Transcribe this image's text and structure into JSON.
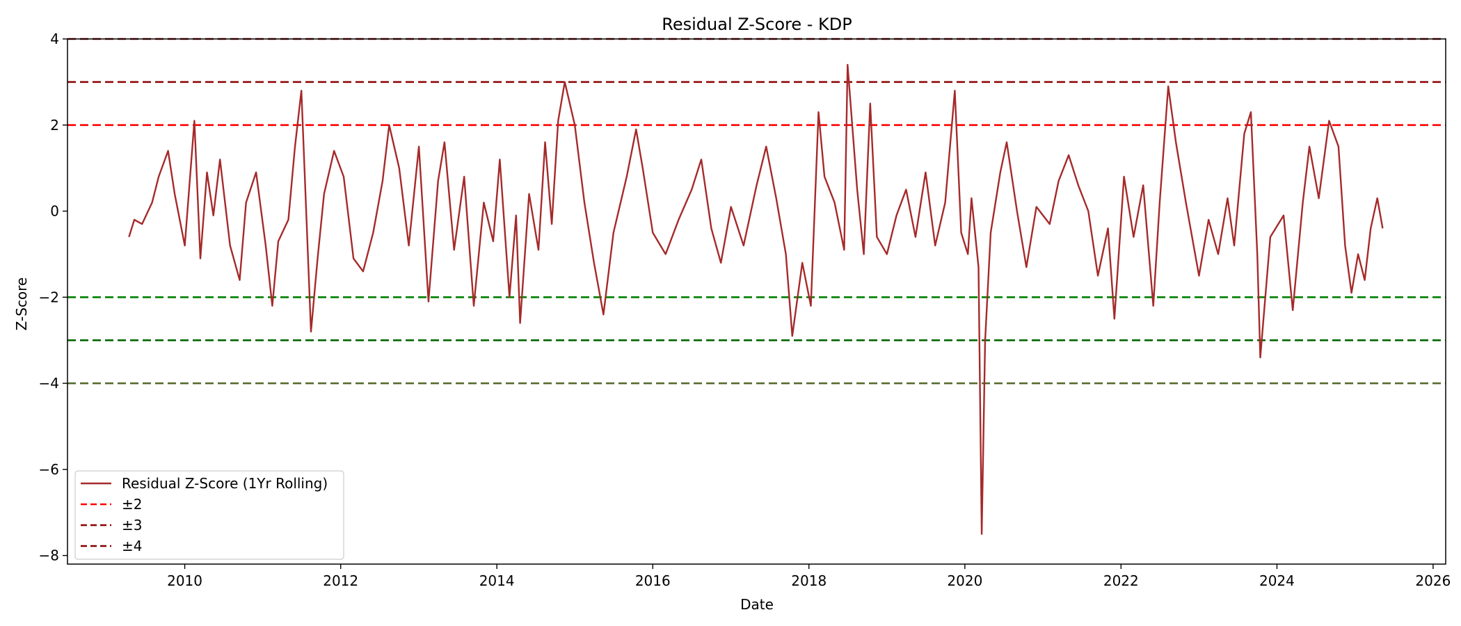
{
  "chart_data": {
    "type": "line",
    "title": "Residual Z-Score - KDP",
    "xlabel": "Date",
    "ylabel": "Z-Score",
    "x_range": [
      "2008-07-01",
      "2026-03-01"
    ],
    "ylim": [
      -8.2,
      4.0
    ],
    "x_ticks": [
      "2010",
      "2012",
      "2014",
      "2016",
      "2018",
      "2020",
      "2022",
      "2024",
      "2026"
    ],
    "y_ticks": [
      4,
      2,
      0,
      -2,
      -4,
      -6,
      -8
    ],
    "y_tick_labels": [
      "4",
      "2",
      "0",
      "−2",
      "−4",
      "−6",
      "−8"
    ],
    "grid": false,
    "legend_position": "lower-left",
    "series": [
      {
        "name": "Residual Z-Score (1Yr Rolling)",
        "color": "#a52a2a",
        "style": "solid",
        "points": [
          [
            "2009-04-15",
            -0.6
          ],
          [
            "2009-05-10",
            -0.2
          ],
          [
            "2009-06-15",
            -0.3
          ],
          [
            "2009-08-01",
            0.2
          ],
          [
            "2009-09-01",
            0.8
          ],
          [
            "2009-10-15",
            1.4
          ],
          [
            "2009-11-15",
            0.4
          ],
          [
            "2010-01-01",
            -0.8
          ],
          [
            "2010-02-15",
            2.1
          ],
          [
            "2010-03-15",
            -1.1
          ],
          [
            "2010-04-15",
            0.9
          ],
          [
            "2010-05-15",
            -0.1
          ],
          [
            "2010-06-15",
            1.2
          ],
          [
            "2010-08-01",
            -0.8
          ],
          [
            "2010-09-15",
            -1.6
          ],
          [
            "2010-10-15",
            0.2
          ],
          [
            "2010-12-01",
            0.9
          ],
          [
            "2011-01-15",
            -0.8
          ],
          [
            "2011-02-15",
            -2.2
          ],
          [
            "2011-03-15",
            -0.7
          ],
          [
            "2011-05-01",
            -0.2
          ],
          [
            "2011-06-01",
            1.5
          ],
          [
            "2011-07-01",
            2.8
          ],
          [
            "2011-08-15",
            -2.8
          ],
          [
            "2011-09-15",
            -1.1
          ],
          [
            "2011-10-15",
            0.4
          ],
          [
            "2011-12-01",
            1.4
          ],
          [
            "2012-01-15",
            0.8
          ],
          [
            "2012-03-01",
            -1.1
          ],
          [
            "2012-04-15",
            -1.4
          ],
          [
            "2012-06-01",
            -0.5
          ],
          [
            "2012-07-15",
            0.7
          ],
          [
            "2012-08-15",
            2.0
          ],
          [
            "2012-10-01",
            1.0
          ],
          [
            "2012-11-15",
            -0.8
          ],
          [
            "2013-01-01",
            1.5
          ],
          [
            "2013-02-15",
            -2.1
          ],
          [
            "2013-04-01",
            0.7
          ],
          [
            "2013-05-01",
            1.6
          ],
          [
            "2013-06-15",
            -0.9
          ],
          [
            "2013-08-01",
            0.8
          ],
          [
            "2013-09-15",
            -2.2
          ],
          [
            "2013-11-01",
            0.2
          ],
          [
            "2013-12-15",
            -0.7
          ],
          [
            "2014-01-15",
            1.2
          ],
          [
            "2014-03-01",
            -2.0
          ],
          [
            "2014-04-01",
            -0.1
          ],
          [
            "2014-04-20",
            -2.6
          ],
          [
            "2014-06-01",
            0.4
          ],
          [
            "2014-07-15",
            -0.9
          ],
          [
            "2014-08-15",
            1.6
          ],
          [
            "2014-09-15",
            -0.3
          ],
          [
            "2014-10-15",
            2.1
          ],
          [
            "2014-11-15",
            3.0
          ],
          [
            "2015-01-01",
            2.0
          ],
          [
            "2015-02-15",
            0.2
          ],
          [
            "2015-04-01",
            -1.2
          ],
          [
            "2015-05-15",
            -2.4
          ],
          [
            "2015-07-01",
            -0.5
          ],
          [
            "2015-09-01",
            0.8
          ],
          [
            "2015-10-15",
            1.9
          ],
          [
            "2015-11-15",
            1.0
          ],
          [
            "2016-01-01",
            -0.5
          ],
          [
            "2016-03-01",
            -1.0
          ],
          [
            "2016-05-01",
            -0.2
          ],
          [
            "2016-07-01",
            0.5
          ],
          [
            "2016-08-15",
            1.2
          ],
          [
            "2016-10-01",
            -0.4
          ],
          [
            "2016-11-15",
            -1.2
          ],
          [
            "2017-01-01",
            0.1
          ],
          [
            "2017-03-01",
            -0.8
          ],
          [
            "2017-05-01",
            0.6
          ],
          [
            "2017-06-15",
            1.5
          ],
          [
            "2017-08-01",
            0.3
          ],
          [
            "2017-09-15",
            -1.0
          ],
          [
            "2017-10-15",
            -2.9
          ],
          [
            "2017-12-01",
            -1.2
          ],
          [
            "2018-01-10",
            -2.2
          ],
          [
            "2018-02-15",
            2.3
          ],
          [
            "2018-03-15",
            0.8
          ],
          [
            "2018-05-01",
            0.2
          ],
          [
            "2018-06-15",
            -0.9
          ],
          [
            "2018-07-01",
            3.4
          ],
          [
            "2018-08-15",
            0.5
          ],
          [
            "2018-09-15",
            -1.0
          ],
          [
            "2018-10-15",
            2.5
          ],
          [
            "2018-11-15",
            -0.6
          ],
          [
            "2019-01-01",
            -1.0
          ],
          [
            "2019-02-15",
            -0.1
          ],
          [
            "2019-04-01",
            0.5
          ],
          [
            "2019-05-15",
            -0.6
          ],
          [
            "2019-07-01",
            0.9
          ],
          [
            "2019-08-15",
            -0.8
          ],
          [
            "2019-10-01",
            0.2
          ],
          [
            "2019-11-15",
            2.8
          ],
          [
            "2019-12-15",
            -0.5
          ],
          [
            "2020-01-15",
            -1.0
          ],
          [
            "2020-02-01",
            0.3
          ],
          [
            "2020-03-05",
            -1.3
          ],
          [
            "2020-03-20",
            -7.5
          ],
          [
            "2020-04-05",
            -3.0
          ],
          [
            "2020-05-01",
            -0.5
          ],
          [
            "2020-06-15",
            0.9
          ],
          [
            "2020-07-15",
            1.6
          ],
          [
            "2020-09-01",
            0.0
          ],
          [
            "2020-10-15",
            -1.3
          ],
          [
            "2020-12-01",
            0.1
          ],
          [
            "2021-02-01",
            -0.3
          ],
          [
            "2021-03-15",
            0.7
          ],
          [
            "2021-05-01",
            1.3
          ],
          [
            "2021-06-15",
            0.6
          ],
          [
            "2021-08-01",
            0.0
          ],
          [
            "2021-09-15",
            -1.5
          ],
          [
            "2021-11-01",
            -0.4
          ],
          [
            "2021-12-01",
            -2.5
          ],
          [
            "2022-01-15",
            0.8
          ],
          [
            "2022-03-01",
            -0.6
          ],
          [
            "2022-04-15",
            0.6
          ],
          [
            "2022-06-01",
            -2.2
          ],
          [
            "2022-07-01",
            0.2
          ],
          [
            "2022-08-10",
            2.9
          ],
          [
            "2022-09-15",
            1.6
          ],
          [
            "2022-11-01",
            0.2
          ],
          [
            "2023-01-01",
            -1.5
          ],
          [
            "2023-02-15",
            -0.2
          ],
          [
            "2023-04-01",
            -1.0
          ],
          [
            "2023-05-15",
            0.3
          ],
          [
            "2023-06-15",
            -0.8
          ],
          [
            "2023-08-01",
            1.8
          ],
          [
            "2023-09-01",
            2.3
          ],
          [
            "2023-10-01",
            -1.0
          ],
          [
            "2023-10-15",
            -3.4
          ],
          [
            "2023-12-01",
            -0.6
          ],
          [
            "2024-02-01",
            -0.1
          ],
          [
            "2024-03-15",
            -2.3
          ],
          [
            "2024-05-01",
            0.2
          ],
          [
            "2024-06-01",
            1.5
          ],
          [
            "2024-07-15",
            0.3
          ],
          [
            "2024-09-01",
            2.1
          ],
          [
            "2024-10-15",
            1.5
          ],
          [
            "2024-11-15",
            -0.8
          ],
          [
            "2024-12-15",
            -1.9
          ],
          [
            "2025-01-15",
            -1.0
          ],
          [
            "2025-02-15",
            -1.6
          ],
          [
            "2025-03-15",
            -0.4
          ],
          [
            "2025-04-15",
            0.3
          ],
          [
            "2025-05-10",
            -0.4
          ]
        ]
      }
    ],
    "reference_lines": [
      {
        "y": 4,
        "color": "#800000",
        "style": "dashed"
      },
      {
        "y": 3,
        "color": "#8b0000",
        "style": "dashed"
      },
      {
        "y": 2,
        "color": "#ff0000",
        "style": "dashed"
      },
      {
        "y": -2,
        "color": "#008000",
        "style": "dashed"
      },
      {
        "y": -3,
        "color": "#006400",
        "style": "dashed"
      },
      {
        "y": -4,
        "color": "#556b2f",
        "style": "dashed"
      }
    ],
    "legend": [
      {
        "label": "Residual Z-Score (1Yr Rolling)",
        "color": "#a52a2a",
        "style": "solid"
      },
      {
        "label": "±2",
        "color": "#ff0000",
        "style": "dashed"
      },
      {
        "label": "±3",
        "color": "#8b0000",
        "style": "dashed"
      },
      {
        "label": "±4",
        "color": "#800000",
        "style": "dashed"
      }
    ]
  }
}
